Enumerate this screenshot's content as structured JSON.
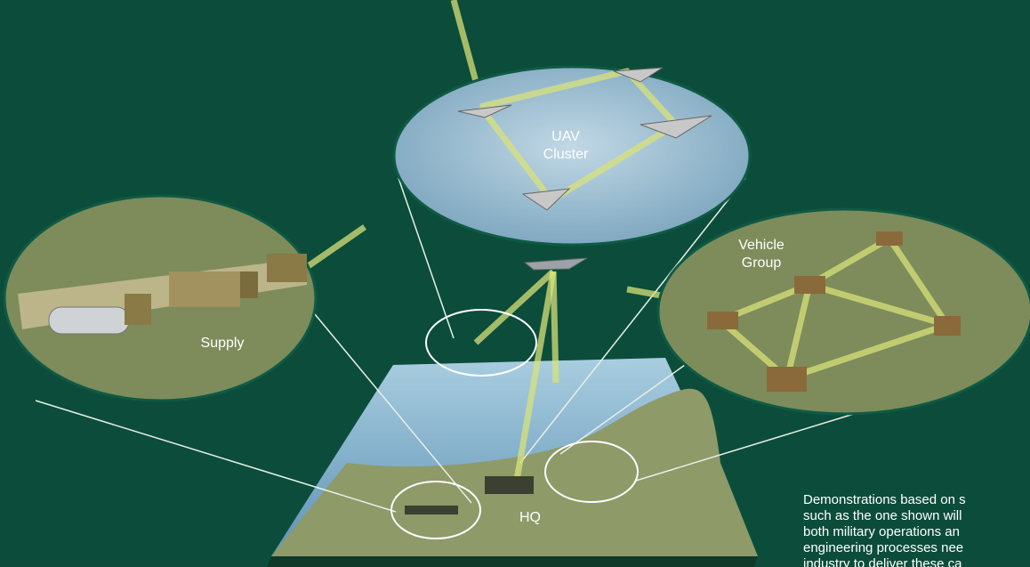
{
  "labels": {
    "uav_cluster": [
      "UAV",
      "Cluster"
    ],
    "vehicle_group": [
      "Vehicle",
      "Group"
    ],
    "supply": "Supply",
    "hq": "HQ"
  },
  "caption": [
    "Demonstrations based on s",
    "such as the one shown will",
    "both military operations an",
    "engineering processes nee",
    "industry to deliver these ca"
  ]
}
